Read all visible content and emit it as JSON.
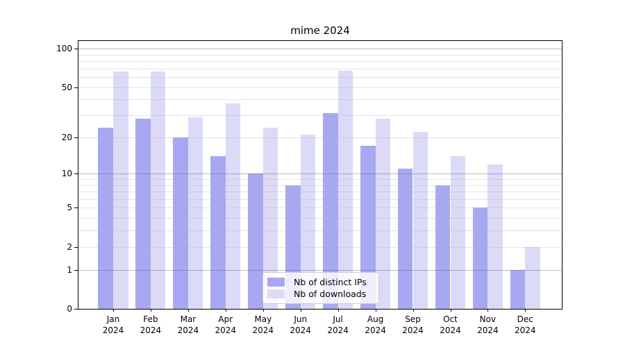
{
  "title": "mime 2024",
  "chart_data": {
    "type": "bar",
    "title": "mime 2024",
    "categories": [
      {
        "month": "Jan",
        "year": "2024"
      },
      {
        "month": "Feb",
        "year": "2024"
      },
      {
        "month": "Mar",
        "year": "2024"
      },
      {
        "month": "Apr",
        "year": "2024"
      },
      {
        "month": "May",
        "year": "2024"
      },
      {
        "month": "Jun",
        "year": "2024"
      },
      {
        "month": "Jul",
        "year": "2024"
      },
      {
        "month": "Aug",
        "year": "2024"
      },
      {
        "month": "Sep",
        "year": "2024"
      },
      {
        "month": "Oct",
        "year": "2024"
      },
      {
        "month": "Nov",
        "year": "2024"
      },
      {
        "month": "Dec",
        "year": "2024"
      }
    ],
    "series": [
      {
        "name": "Nb of distinct IPs",
        "color": "#a8a8f2",
        "values": [
          24,
          28,
          20,
          14,
          10,
          8,
          31,
          17,
          11,
          8,
          5,
          1
        ]
      },
      {
        "name": "Nb of downloads",
        "color": "#dbdbf8",
        "values": [
          66,
          66,
          29,
          37,
          24,
          21,
          67,
          28,
          22,
          14,
          12,
          2
        ]
      }
    ],
    "yscale": "log(value+1)",
    "yticks": [
      0,
      1,
      2,
      5,
      10,
      20,
      50,
      100
    ],
    "minor_grid_values": [
      2,
      3,
      4,
      5,
      6,
      7,
      8,
      9,
      20,
      30,
      40,
      50,
      60,
      70,
      80,
      90
    ],
    "major_grid_values": [
      1,
      10,
      100
    ],
    "ylim": [
      0,
      115
    ],
    "xlabel": "",
    "ylabel": "",
    "grid": true,
    "legend_position": "lower center"
  }
}
